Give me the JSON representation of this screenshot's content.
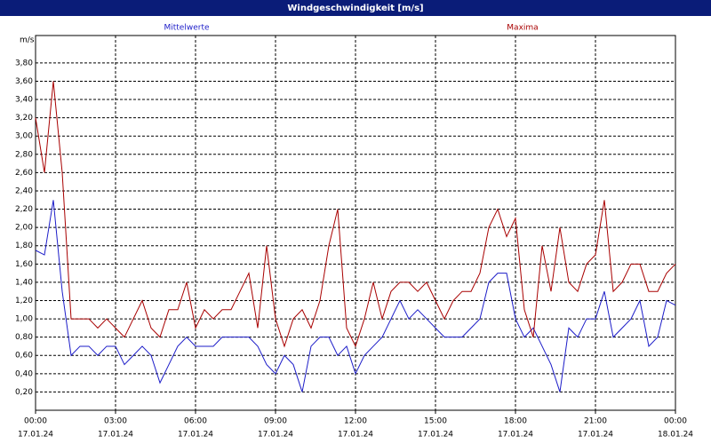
{
  "chart_data": {
    "type": "line",
    "title": "Windgeschwindigkeit [m/s]",
    "y_label": "m/s",
    "x": [
      0,
      20,
      40,
      60,
      80,
      100,
      120,
      140,
      160,
      180,
      200,
      220,
      240,
      260,
      280,
      300,
      320,
      340,
      360,
      380,
      400,
      420,
      440,
      460,
      480,
      500,
      520,
      540,
      560,
      580,
      600,
      620,
      640,
      660,
      680,
      700,
      720,
      740,
      760,
      780,
      800,
      820,
      840,
      860,
      880,
      900,
      920,
      940,
      960,
      980,
      1000,
      1020,
      1040,
      1060,
      1080,
      1100,
      1120,
      1140,
      1160,
      1180,
      1200,
      1220,
      1240,
      1260,
      1280,
      1300,
      1320,
      1340,
      1360,
      1380,
      1400,
      1420,
      1440
    ],
    "series": [
      {
        "name": "Mittelwerte",
        "color": "#1c1cc8",
        "values": [
          1.75,
          1.7,
          2.3,
          1.3,
          0.6,
          0.7,
          0.7,
          0.6,
          0.7,
          0.7,
          0.5,
          0.6,
          0.7,
          0.6,
          0.3,
          0.5,
          0.7,
          0.8,
          0.7,
          0.7,
          0.7,
          0.8,
          0.8,
          0.8,
          0.8,
          0.7,
          0.5,
          0.4,
          0.6,
          0.5,
          0.2,
          0.7,
          0.8,
          0.8,
          0.6,
          0.7,
          0.4,
          0.6,
          0.7,
          0.8,
          1.0,
          1.2,
          1.0,
          1.1,
          1.0,
          0.9,
          0.8,
          0.8,
          0.8,
          0.9,
          1.0,
          1.4,
          1.5,
          1.5,
          1.0,
          0.8,
          0.9,
          0.7,
          0.5,
          0.2,
          0.9,
          0.8,
          1.0,
          1.0,
          1.3,
          0.8,
          0.9,
          1.0,
          1.2,
          0.7,
          0.8,
          1.2,
          1.15
        ]
      },
      {
        "name": "Maxima",
        "color": "#a80000",
        "values": [
          3.2,
          2.6,
          3.6,
          2.6,
          1.0,
          1.0,
          1.0,
          0.9,
          1.0,
          0.9,
          0.8,
          1.0,
          1.2,
          0.9,
          0.8,
          1.1,
          1.1,
          1.4,
          0.9,
          1.1,
          1.0,
          1.1,
          1.1,
          1.3,
          1.5,
          0.9,
          1.8,
          1.0,
          0.7,
          1.0,
          1.1,
          0.9,
          1.2,
          1.8,
          2.2,
          0.9,
          0.7,
          1.0,
          1.4,
          1.0,
          1.3,
          1.4,
          1.4,
          1.3,
          1.4,
          1.2,
          1.0,
          1.2,
          1.3,
          1.3,
          1.5,
          2.0,
          2.2,
          1.9,
          2.1,
          1.1,
          0.8,
          1.8,
          1.3,
          2.0,
          1.4,
          1.3,
          1.6,
          1.7,
          2.3,
          1.3,
          1.4,
          1.6,
          1.6,
          1.3,
          1.3,
          1.5,
          1.6
        ]
      }
    ],
    "xlim": [
      0,
      1440
    ],
    "xticks": [
      {
        "value": 0,
        "label": "00:00"
      },
      {
        "value": 180,
        "label": "03:00"
      },
      {
        "value": 360,
        "label": "06:00"
      },
      {
        "value": 540,
        "label": "09:00"
      },
      {
        "value": 720,
        "label": "12:00"
      },
      {
        "value": 900,
        "label": "15:00"
      },
      {
        "value": 1080,
        "label": "18:00"
      },
      {
        "value": 1260,
        "label": "21:00"
      },
      {
        "value": 1440,
        "label": "00:00"
      }
    ],
    "x_dates": [
      "17.01.24",
      "17.01.24",
      "17.01.24",
      "17.01.24",
      "17.01.24",
      "17.01.24",
      "17.01.24",
      "17.01.24",
      "18.01.24"
    ],
    "ylim": [
      0,
      4.1
    ],
    "yticks": [
      {
        "value": 0.2,
        "label": "0,20"
      },
      {
        "value": 0.4,
        "label": "0,40"
      },
      {
        "value": 0.6,
        "label": "0,60"
      },
      {
        "value": 0.8,
        "label": "0,80"
      },
      {
        "value": 1.0,
        "label": "1,00"
      },
      {
        "value": 1.2,
        "label": "1,20"
      },
      {
        "value": 1.4,
        "label": "1,40"
      },
      {
        "value": 1.6,
        "label": "1,60"
      },
      {
        "value": 1.8,
        "label": "1,80"
      },
      {
        "value": 2.0,
        "label": "2,00"
      },
      {
        "value": 2.2,
        "label": "2,20"
      },
      {
        "value": 2.4,
        "label": "2,40"
      },
      {
        "value": 2.6,
        "label": "2,60"
      },
      {
        "value": 2.8,
        "label": "2,80"
      },
      {
        "value": 3.0,
        "label": "3,00"
      },
      {
        "value": 3.2,
        "label": "3,20"
      },
      {
        "value": 3.4,
        "label": "3,40"
      },
      {
        "value": 3.6,
        "label": "3,60"
      },
      {
        "value": 3.8,
        "label": "3,80"
      }
    ],
    "grid": true
  }
}
